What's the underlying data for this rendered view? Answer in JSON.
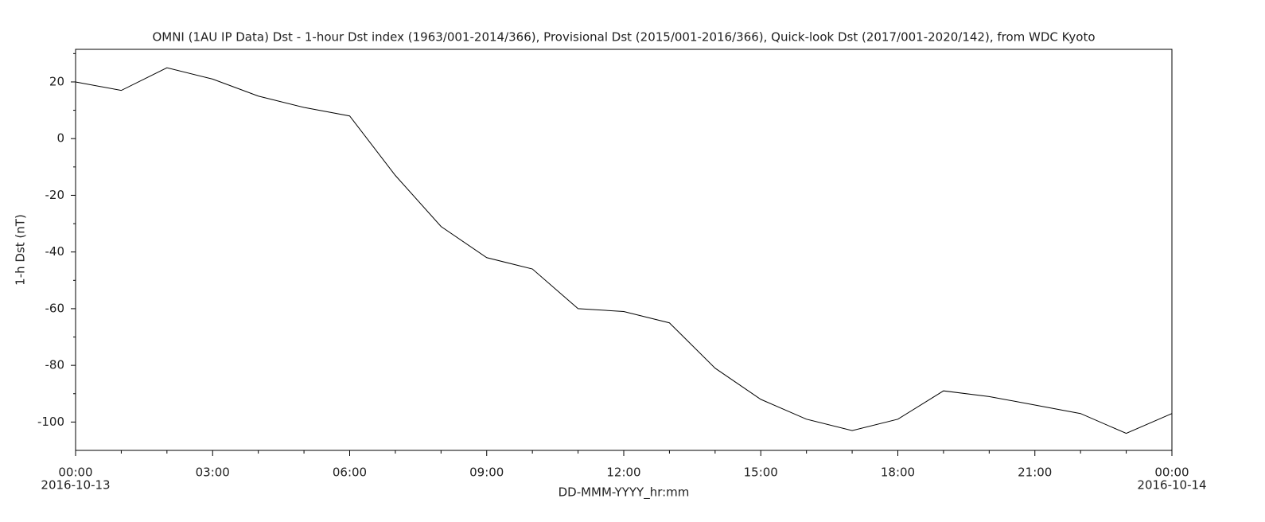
{
  "chart_data": {
    "type": "line",
    "title": "OMNI (1AU IP Data)  Dst - 1-hour Dst index (1963/001-2014/366), Provisional Dst (2015/001-2016/366), Quick-look Dst (2017/001-2020/142), from WDC Kyoto",
    "xlabel": "DD-MMM-YYYY_hr:mm",
    "ylabel": "1-h Dst (nT)",
    "x": [
      0,
      1,
      2,
      3,
      4,
      5,
      6,
      7,
      8,
      9,
      10,
      11,
      12,
      13,
      14,
      15,
      16,
      17,
      18,
      19,
      20,
      21,
      22,
      23,
      24
    ],
    "values": [
      20,
      17,
      25,
      21,
      15,
      11,
      8,
      -13,
      -31,
      -42,
      -46,
      -60,
      -61,
      -65,
      -81,
      -92,
      -99,
      -103,
      -99,
      -89,
      -91,
      -94,
      -97,
      -104,
      -97
    ],
    "color": "#000000",
    "xlim": [
      0,
      24
    ],
    "xticks": [
      {
        "value": 0,
        "label": "00:00"
      },
      {
        "value": 3,
        "label": "03:00"
      },
      {
        "value": 6,
        "label": "06:00"
      },
      {
        "value": 9,
        "label": "09:00"
      },
      {
        "value": 12,
        "label": "12:00"
      },
      {
        "value": 15,
        "label": "15:00"
      },
      {
        "value": 18,
        "label": "18:00"
      },
      {
        "value": 21,
        "label": "21:00"
      },
      {
        "value": 24,
        "label": "00:00"
      }
    ],
    "xminor_ticks": [
      1,
      2,
      4,
      5,
      7,
      8,
      10,
      11,
      13,
      14,
      16,
      17,
      19,
      20,
      22,
      23
    ],
    "date_labels": [
      {
        "value": 0,
        "label": "2016-10-13"
      },
      {
        "value": 24,
        "label": "2016-10-14"
      }
    ],
    "ylim": [
      -110,
      31.5
    ],
    "yticks": [
      -100,
      -80,
      -60,
      -40,
      -20,
      0,
      20
    ],
    "yminor_ticks": [
      -90,
      -70,
      -50,
      -30,
      -10,
      10,
      30
    ]
  }
}
